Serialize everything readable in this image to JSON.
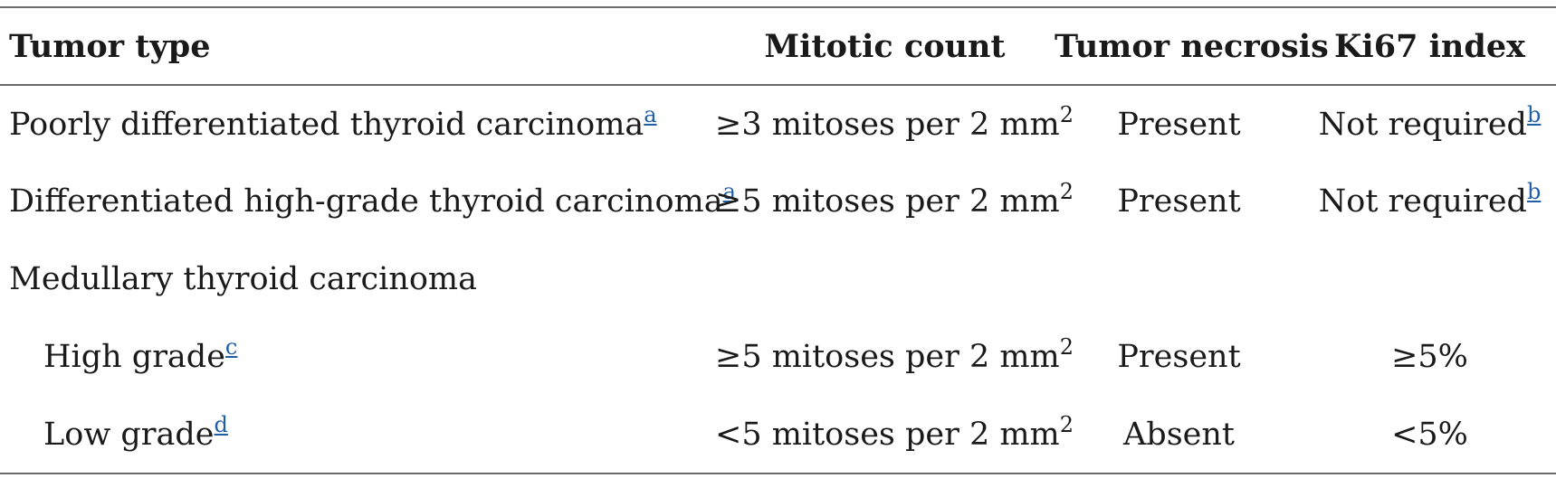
{
  "table": {
    "headers": {
      "tumor_type": "Tumor type",
      "mitotic_count": "Mitotic count",
      "tumor_necrosis": "Tumor necrosis",
      "ki67_index": "Ki67 index"
    },
    "rows": [
      {
        "tumor_type": "Poorly differentiated thyroid carcinoma",
        "tumor_type_note": "a",
        "mitotic_prefix": "≥3 mitoses per 2 mm",
        "mitotic_exp": "2",
        "necrosis": "Present",
        "ki67": "Not required",
        "ki67_note": "b"
      },
      {
        "tumor_type": "Differentiated high-grade thyroid carcinoma",
        "tumor_type_note": "a",
        "mitotic_prefix": "≥5 mitoses per 2 mm",
        "mitotic_exp": "2",
        "necrosis": "Present",
        "ki67": "Not required",
        "ki67_note": "b"
      },
      {
        "tumor_type": "Medullary thyroid carcinoma"
      },
      {
        "tumor_type": "High grade",
        "tumor_type_note": "c",
        "mitotic_prefix": "≥5 mitoses per 2 mm",
        "mitotic_exp": "2",
        "necrosis": "Present",
        "ki67": "≥5%"
      },
      {
        "tumor_type": "Low grade",
        "tumor_type_note": "d",
        "mitotic_prefix": "<5 mitoses per 2 mm",
        "mitotic_exp": "2",
        "necrosis": "Absent",
        "ki67": "<5%"
      }
    ]
  }
}
